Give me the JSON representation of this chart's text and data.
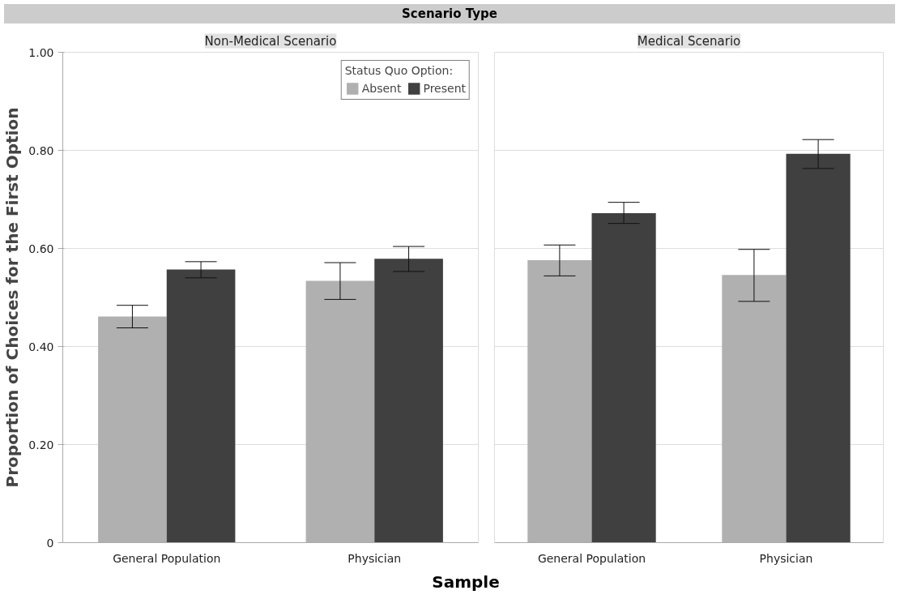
{
  "chart_data": [
    {
      "type": "bar",
      "title": "Non-Medical Scenario",
      "annotations": [
        "Scenario Type"
      ],
      "xlabel": "Sample",
      "ylabel": "Proportion of Choices for the First Option",
      "legend_title": "Status Quo Option:",
      "legend": "top right",
      "grid": "y",
      "categories": [
        "General Population",
        "Physician"
      ],
      "ylim": [
        0,
        1
      ],
      "yticks": [
        {
          "value": 0,
          "label": "0"
        },
        {
          "value": 0.2,
          "label": "0.20"
        },
        {
          "value": 0.4,
          "label": "0.40"
        },
        {
          "value": 0.6,
          "label": "0.60"
        },
        {
          "value": 0.8,
          "label": "0.80"
        },
        {
          "value": 1,
          "label": "1.00"
        }
      ],
      "series": [
        {
          "name": "Absent",
          "color": "#b0b0b0",
          "values": [
            0.461,
            0.534
          ],
          "errors": [
            [
              0.438,
              0.484
            ],
            [
              0.496,
              0.571
            ]
          ]
        },
        {
          "name": "Present",
          "color": "#404040",
          "values": [
            0.557,
            0.579
          ],
          "errors": [
            [
              0.54,
              0.573
            ],
            [
              0.553,
              0.604
            ]
          ]
        }
      ]
    },
    {
      "type": "bar",
      "title": "Medical Scenario",
      "grid": "y",
      "tick_labels": "x",
      "categories": [
        "General Population",
        "Physician"
      ],
      "ylim": [
        0,
        1
      ],
      "yticks": [
        0,
        0.2,
        0.4,
        0.6,
        0.8,
        1
      ],
      "series": [
        {
          "color": "#b0b0b0",
          "values": [
            0.576,
            0.546
          ],
          "errors": [
            [
              0.544,
              0.607
            ],
            [
              0.492,
              0.598
            ]
          ]
        },
        {
          "color": "#404040",
          "values": [
            0.672,
            0.793
          ],
          "errors": [
            [
              0.651,
              0.694
            ],
            [
              0.763,
              0.822
            ]
          ]
        }
      ]
    }
  ]
}
